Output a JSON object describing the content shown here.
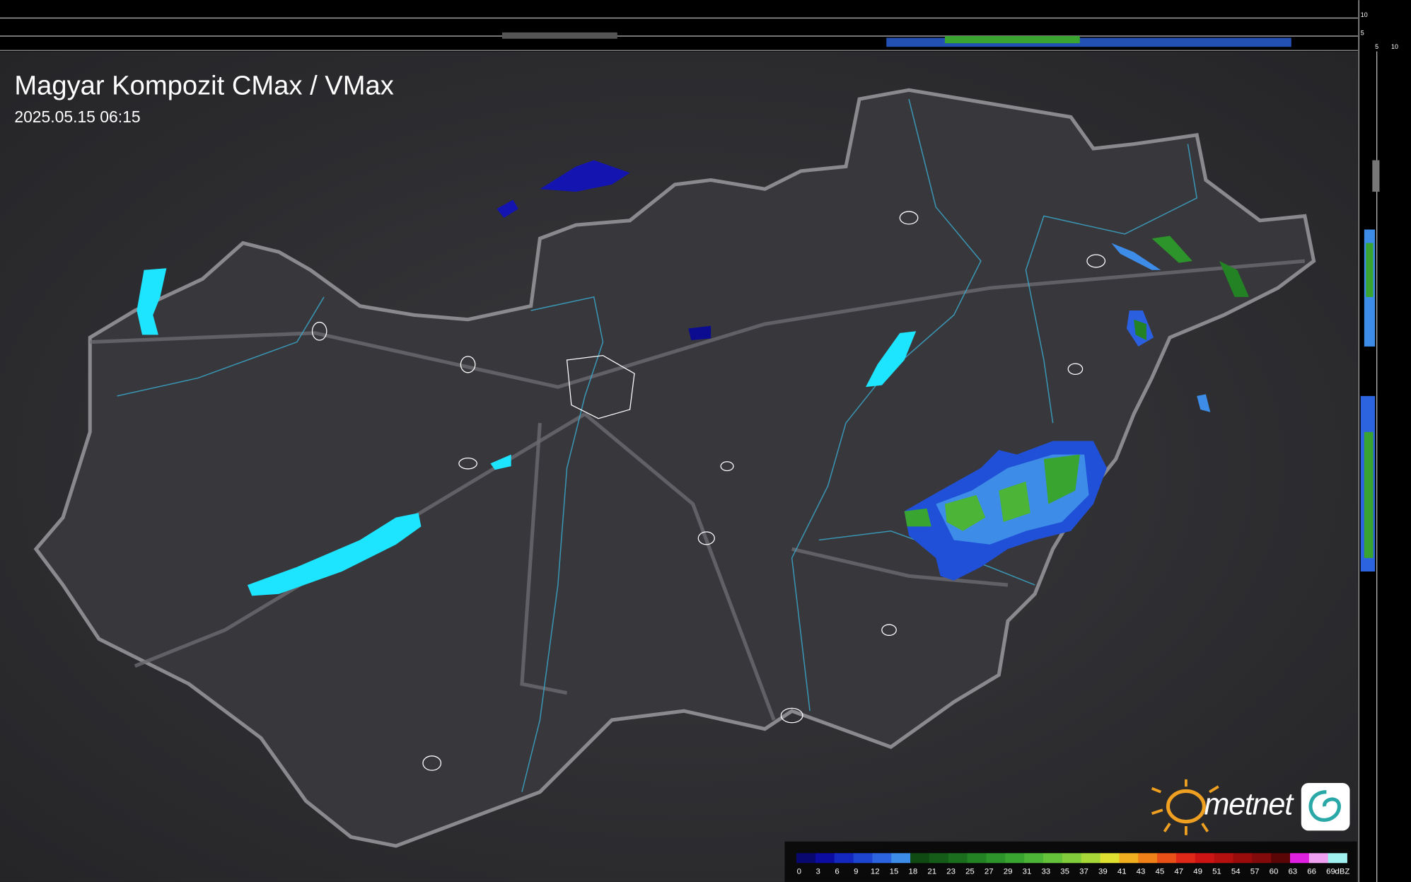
{
  "header": {
    "title": "Magyar Kompozit CMax / VMax",
    "timestamp": "2025.05.15 06:15"
  },
  "brand": "metnet",
  "side_scale": {
    "vertical": [
      "10",
      "5"
    ],
    "horizontal": [
      "5",
      "10"
    ]
  },
  "legend": {
    "unit": "dBZ",
    "steps": [
      {
        "value": 0,
        "color": "#08086e"
      },
      {
        "value": 3,
        "color": "#0c0ca0"
      },
      {
        "value": 6,
        "color": "#1428c0"
      },
      {
        "value": 9,
        "color": "#1e44d2"
      },
      {
        "value": 12,
        "color": "#2c64e0"
      },
      {
        "value": 15,
        "color": "#3c8ce8"
      },
      {
        "value": 18,
        "color": "#0f4a12"
      },
      {
        "value": 21,
        "color": "#145c18"
      },
      {
        "value": 23,
        "color": "#1a6e1e"
      },
      {
        "value": 25,
        "color": "#228224"
      },
      {
        "value": 27,
        "color": "#2c942a"
      },
      {
        "value": 29,
        "color": "#3aa430"
      },
      {
        "value": 31,
        "color": "#4cb436"
      },
      {
        "value": 33,
        "color": "#64c23a"
      },
      {
        "value": 35,
        "color": "#80cc3a"
      },
      {
        "value": 37,
        "color": "#a8d838"
      },
      {
        "value": 39,
        "color": "#e0e030"
      },
      {
        "value": 41,
        "color": "#f0b020"
      },
      {
        "value": 43,
        "color": "#f08018"
      },
      {
        "value": 45,
        "color": "#e85018"
      },
      {
        "value": 47,
        "color": "#e02818"
      },
      {
        "value": 49,
        "color": "#cc1414"
      },
      {
        "value": 51,
        "color": "#b41010"
      },
      {
        "value": 54,
        "color": "#9a0c0c"
      },
      {
        "value": 57,
        "color": "#820a0a"
      },
      {
        "value": 60,
        "color": "#5a0606"
      },
      {
        "value": 63,
        "color": "#e020e0"
      },
      {
        "value": 66,
        "color": "#f0a0f0"
      },
      {
        "value": 69,
        "color": "#a0f0f0"
      }
    ]
  }
}
